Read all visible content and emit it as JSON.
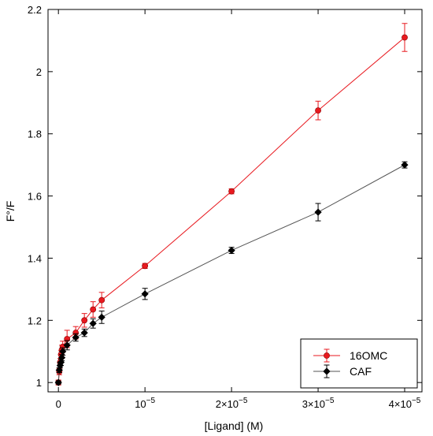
{
  "chart_data": {
    "type": "scatter",
    "xlabel": "[Ligand] (M)",
    "ylabel": "F°/F",
    "xlim": [
      -1.2e-06,
      4.2e-05
    ],
    "ylim": [
      0.97,
      2.2
    ],
    "x_ticks": [
      0,
      1e-05,
      2e-05,
      3e-05,
      4e-05
    ],
    "x_tick_labels": [
      {
        "text": "0"
      },
      {
        "base": "10",
        "exp": "−5"
      },
      {
        "base": "2×10",
        "exp": "−5"
      },
      {
        "base": "3×10",
        "exp": "−5"
      },
      {
        "base": "4×10",
        "exp": "−5"
      }
    ],
    "y_ticks": [
      1,
      1.2,
      1.4,
      1.6,
      1.8,
      2,
      2.2
    ],
    "y_tick_labels": [
      "1",
      "1.2",
      "1.4",
      "1.6",
      "1.8",
      "2",
      "2.2"
    ],
    "grid": false,
    "legend_position": "bottom-right",
    "series": [
      {
        "name": "16OMC",
        "color": "#e8191f",
        "line_color": "#e8191f",
        "marker": "circle",
        "x": [
          0,
          1e-07,
          2e-07,
          3e-07,
          4e-07,
          5e-07,
          1e-06,
          2e-06,
          3e-06,
          4e-06,
          5e-06,
          1e-05,
          2e-05,
          3e-05,
          4e-05
        ],
        "y": [
          1.0,
          1.035,
          1.065,
          1.09,
          1.105,
          1.115,
          1.14,
          1.16,
          1.2,
          1.235,
          1.265,
          1.375,
          1.615,
          1.875,
          2.11
        ],
        "err": [
          0.008,
          0.01,
          0.012,
          0.012,
          0.015,
          0.018,
          0.028,
          0.02,
          0.022,
          0.025,
          0.025,
          0.008,
          0.008,
          0.03,
          0.045
        ]
      },
      {
        "name": "CAF",
        "color": "#000000",
        "line_color": "#555555",
        "marker": "diamond",
        "x": [
          0,
          1e-07,
          2e-07,
          3e-07,
          4e-07,
          5e-07,
          1e-06,
          2e-06,
          3e-06,
          4e-06,
          5e-06,
          1e-05,
          2e-05,
          3e-05,
          4e-05
        ],
        "y": [
          1.0,
          1.04,
          1.055,
          1.065,
          1.08,
          1.1,
          1.12,
          1.145,
          1.16,
          1.19,
          1.21,
          1.285,
          1.425,
          1.548,
          1.7
        ],
        "err": [
          0.005,
          0.008,
          0.008,
          0.01,
          0.01,
          0.012,
          0.015,
          0.012,
          0.012,
          0.015,
          0.02,
          0.018,
          0.01,
          0.028,
          0.01
        ]
      }
    ]
  }
}
